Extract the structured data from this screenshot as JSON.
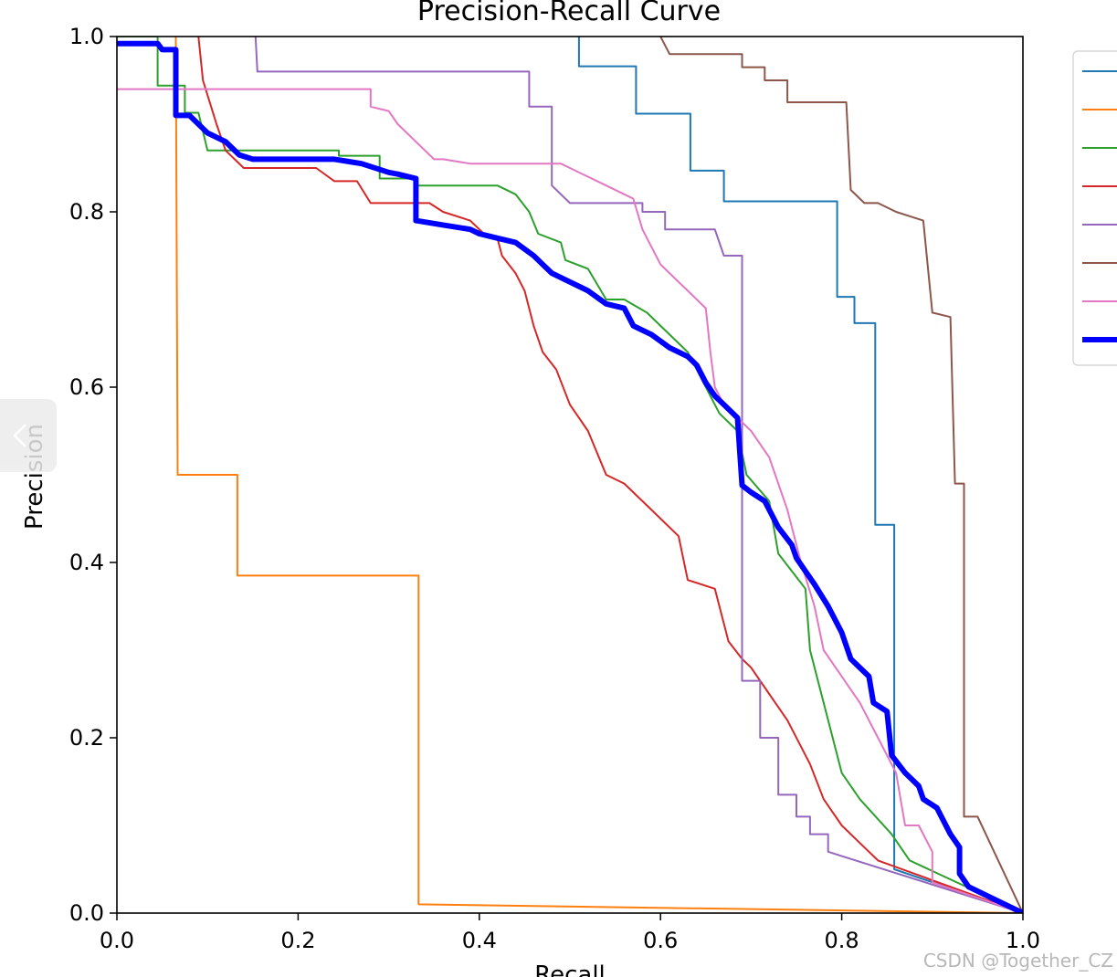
{
  "chart_data": {
    "type": "line",
    "title": "Precision-Recall Curve",
    "xlabel": "Recall",
    "ylabel": "Precision",
    "xlim": [
      0,
      1
    ],
    "ylim": [
      0,
      1
    ],
    "xticks": [
      "0.0",
      "0.2",
      "0.4",
      "0.6",
      "0.8",
      "1.0"
    ],
    "yticks": [
      "0.0",
      "0.2",
      "0.4",
      "0.6",
      "0.8",
      "1.0"
    ],
    "grid": false,
    "legend": "outside-right",
    "series": [
      {
        "color": "#1f77b4",
        "width": 2,
        "points": [
          [
            0.51,
            1.0
          ],
          [
            0.51,
            0.966
          ],
          [
            0.573,
            0.966
          ],
          [
            0.573,
            0.912
          ],
          [
            0.633,
            0.912
          ],
          [
            0.633,
            0.847
          ],
          [
            0.67,
            0.847
          ],
          [
            0.67,
            0.812
          ],
          [
            0.795,
            0.812
          ],
          [
            0.795,
            0.703
          ],
          [
            0.814,
            0.703
          ],
          [
            0.814,
            0.673
          ],
          [
            0.837,
            0.673
          ],
          [
            0.837,
            0.443
          ],
          [
            0.858,
            0.443
          ],
          [
            0.858,
            0.05
          ],
          [
            1.0,
            0.0
          ]
        ]
      },
      {
        "color": "#ff7f0e",
        "width": 2,
        "points": [
          [
            0.065,
            1.0
          ],
          [
            0.067,
            0.5
          ],
          [
            0.133,
            0.5
          ],
          [
            0.133,
            0.385
          ],
          [
            0.333,
            0.385
          ],
          [
            0.333,
            0.01
          ],
          [
            1.0,
            0.0
          ]
        ]
      },
      {
        "color": "#2ca02c",
        "width": 2,
        "points": [
          [
            0.0,
            1.0
          ],
          [
            0.045,
            1.0
          ],
          [
            0.045,
            0.944
          ],
          [
            0.075,
            0.944
          ],
          [
            0.075,
            0.913
          ],
          [
            0.09,
            0.913
          ],
          [
            0.1,
            0.87
          ],
          [
            0.14,
            0.87
          ],
          [
            0.245,
            0.87
          ],
          [
            0.245,
            0.864
          ],
          [
            0.29,
            0.864
          ],
          [
            0.29,
            0.838
          ],
          [
            0.33,
            0.838
          ],
          [
            0.33,
            0.83
          ],
          [
            0.36,
            0.83
          ],
          [
            0.42,
            0.83
          ],
          [
            0.44,
            0.82
          ],
          [
            0.455,
            0.8
          ],
          [
            0.465,
            0.775
          ],
          [
            0.49,
            0.765
          ],
          [
            0.495,
            0.745
          ],
          [
            0.52,
            0.735
          ],
          [
            0.54,
            0.7
          ],
          [
            0.56,
            0.7
          ],
          [
            0.585,
            0.685
          ],
          [
            0.61,
            0.66
          ],
          [
            0.63,
            0.64
          ],
          [
            0.65,
            0.6
          ],
          [
            0.665,
            0.57
          ],
          [
            0.685,
            0.55
          ],
          [
            0.695,
            0.5
          ],
          [
            0.72,
            0.47
          ],
          [
            0.73,
            0.41
          ],
          [
            0.76,
            0.37
          ],
          [
            0.765,
            0.3
          ],
          [
            0.79,
            0.2
          ],
          [
            0.8,
            0.16
          ],
          [
            0.82,
            0.13
          ],
          [
            0.855,
            0.09
          ],
          [
            0.875,
            0.06
          ],
          [
            1.0,
            0.0
          ]
        ]
      },
      {
        "color": "#d62728",
        "width": 2,
        "points": [
          [
            0.09,
            1.0
          ],
          [
            0.095,
            0.95
          ],
          [
            0.11,
            0.9
          ],
          [
            0.12,
            0.87
          ],
          [
            0.14,
            0.85
          ],
          [
            0.22,
            0.85
          ],
          [
            0.24,
            0.835
          ],
          [
            0.265,
            0.835
          ],
          [
            0.28,
            0.81
          ],
          [
            0.345,
            0.81
          ],
          [
            0.36,
            0.8
          ],
          [
            0.39,
            0.79
          ],
          [
            0.405,
            0.775
          ],
          [
            0.42,
            0.77
          ],
          [
            0.425,
            0.75
          ],
          [
            0.44,
            0.73
          ],
          [
            0.45,
            0.71
          ],
          [
            0.46,
            0.67
          ],
          [
            0.47,
            0.64
          ],
          [
            0.485,
            0.62
          ],
          [
            0.5,
            0.58
          ],
          [
            0.52,
            0.55
          ],
          [
            0.54,
            0.5
          ],
          [
            0.56,
            0.49
          ],
          [
            0.59,
            0.46
          ],
          [
            0.62,
            0.43
          ],
          [
            0.63,
            0.38
          ],
          [
            0.66,
            0.37
          ],
          [
            0.675,
            0.31
          ],
          [
            0.69,
            0.29
          ],
          [
            0.7,
            0.28
          ],
          [
            0.72,
            0.25
          ],
          [
            0.74,
            0.22
          ],
          [
            0.765,
            0.17
          ],
          [
            0.78,
            0.13
          ],
          [
            0.8,
            0.1
          ],
          [
            0.82,
            0.08
          ],
          [
            0.84,
            0.06
          ],
          [
            1.0,
            0.0
          ]
        ]
      },
      {
        "color": "#9467bd",
        "width": 2,
        "points": [
          [
            0.153,
            1.0
          ],
          [
            0.155,
            0.96
          ],
          [
            0.455,
            0.96
          ],
          [
            0.455,
            0.92
          ],
          [
            0.48,
            0.92
          ],
          [
            0.48,
            0.83
          ],
          [
            0.5,
            0.81
          ],
          [
            0.58,
            0.81
          ],
          [
            0.58,
            0.8
          ],
          [
            0.605,
            0.8
          ],
          [
            0.605,
            0.78
          ],
          [
            0.66,
            0.78
          ],
          [
            0.67,
            0.75
          ],
          [
            0.69,
            0.75
          ],
          [
            0.69,
            0.265
          ],
          [
            0.71,
            0.265
          ],
          [
            0.71,
            0.2
          ],
          [
            0.73,
            0.2
          ],
          [
            0.73,
            0.135
          ],
          [
            0.75,
            0.135
          ],
          [
            0.75,
            0.11
          ],
          [
            0.765,
            0.11
          ],
          [
            0.765,
            0.09
          ],
          [
            0.785,
            0.09
          ],
          [
            0.785,
            0.07
          ],
          [
            0.8,
            0.065
          ],
          [
            1.0,
            0.0
          ]
        ]
      },
      {
        "color": "#8c564b",
        "width": 2,
        "points": [
          [
            0.6,
            1.0
          ],
          [
            0.61,
            0.98
          ],
          [
            0.69,
            0.98
          ],
          [
            0.69,
            0.965
          ],
          [
            0.715,
            0.965
          ],
          [
            0.715,
            0.95
          ],
          [
            0.74,
            0.95
          ],
          [
            0.74,
            0.925
          ],
          [
            0.805,
            0.925
          ],
          [
            0.81,
            0.825
          ],
          [
            0.825,
            0.81
          ],
          [
            0.84,
            0.81
          ],
          [
            0.86,
            0.8
          ],
          [
            0.875,
            0.795
          ],
          [
            0.89,
            0.79
          ],
          [
            0.9,
            0.685
          ],
          [
            0.92,
            0.68
          ],
          [
            0.925,
            0.49
          ],
          [
            0.935,
            0.49
          ],
          [
            0.935,
            0.11
          ],
          [
            0.95,
            0.11
          ],
          [
            1.0,
            0.0
          ]
        ]
      },
      {
        "color": "#e377c2",
        "width": 2,
        "points": [
          [
            0.0,
            0.94
          ],
          [
            0.28,
            0.94
          ],
          [
            0.28,
            0.92
          ],
          [
            0.3,
            0.915
          ],
          [
            0.31,
            0.9
          ],
          [
            0.33,
            0.88
          ],
          [
            0.35,
            0.86
          ],
          [
            0.36,
            0.86
          ],
          [
            0.39,
            0.855
          ],
          [
            0.49,
            0.855
          ],
          [
            0.5,
            0.85
          ],
          [
            0.54,
            0.83
          ],
          [
            0.56,
            0.82
          ],
          [
            0.57,
            0.815
          ],
          [
            0.58,
            0.78
          ],
          [
            0.59,
            0.76
          ],
          [
            0.6,
            0.74
          ],
          [
            0.62,
            0.72
          ],
          [
            0.63,
            0.71
          ],
          [
            0.65,
            0.69
          ],
          [
            0.655,
            0.64
          ],
          [
            0.66,
            0.6
          ],
          [
            0.67,
            0.58
          ],
          [
            0.7,
            0.55
          ],
          [
            0.72,
            0.52
          ],
          [
            0.74,
            0.46
          ],
          [
            0.755,
            0.4
          ],
          [
            0.77,
            0.35
          ],
          [
            0.78,
            0.3
          ],
          [
            0.8,
            0.27
          ],
          [
            0.82,
            0.24
          ],
          [
            0.84,
            0.2
          ],
          [
            0.86,
            0.16
          ],
          [
            0.87,
            0.1
          ],
          [
            0.885,
            0.1
          ],
          [
            0.9,
            0.07
          ],
          [
            0.9,
            0.035
          ],
          [
            1.0,
            0.0
          ]
        ]
      },
      {
        "color": "#0000ff",
        "width": 6,
        "points": [
          [
            0.0,
            0.992
          ],
          [
            0.045,
            0.992
          ],
          [
            0.05,
            0.985
          ],
          [
            0.065,
            0.985
          ],
          [
            0.065,
            0.91
          ],
          [
            0.08,
            0.91
          ],
          [
            0.09,
            0.9
          ],
          [
            0.1,
            0.89
          ],
          [
            0.12,
            0.88
          ],
          [
            0.13,
            0.87
          ],
          [
            0.135,
            0.865
          ],
          [
            0.15,
            0.86
          ],
          [
            0.24,
            0.86
          ],
          [
            0.27,
            0.855
          ],
          [
            0.3,
            0.845
          ],
          [
            0.31,
            0.843
          ],
          [
            0.33,
            0.838
          ],
          [
            0.33,
            0.79
          ],
          [
            0.36,
            0.785
          ],
          [
            0.39,
            0.78
          ],
          [
            0.4,
            0.775
          ],
          [
            0.42,
            0.77
          ],
          [
            0.44,
            0.765
          ],
          [
            0.46,
            0.75
          ],
          [
            0.47,
            0.74
          ],
          [
            0.48,
            0.73
          ],
          [
            0.5,
            0.72
          ],
          [
            0.52,
            0.71
          ],
          [
            0.54,
            0.695
          ],
          [
            0.56,
            0.69
          ],
          [
            0.57,
            0.67
          ],
          [
            0.59,
            0.66
          ],
          [
            0.61,
            0.645
          ],
          [
            0.63,
            0.635
          ],
          [
            0.64,
            0.625
          ],
          [
            0.65,
            0.605
          ],
          [
            0.66,
            0.59
          ],
          [
            0.675,
            0.575
          ],
          [
            0.685,
            0.565
          ],
          [
            0.69,
            0.488
          ],
          [
            0.7,
            0.48
          ],
          [
            0.715,
            0.47
          ],
          [
            0.73,
            0.44
          ],
          [
            0.745,
            0.42
          ],
          [
            0.75,
            0.405
          ],
          [
            0.77,
            0.375
          ],
          [
            0.785,
            0.35
          ],
          [
            0.8,
            0.32
          ],
          [
            0.81,
            0.29
          ],
          [
            0.82,
            0.28
          ],
          [
            0.83,
            0.27
          ],
          [
            0.835,
            0.24
          ],
          [
            0.85,
            0.23
          ],
          [
            0.855,
            0.18
          ],
          [
            0.87,
            0.16
          ],
          [
            0.885,
            0.145
          ],
          [
            0.89,
            0.13
          ],
          [
            0.905,
            0.12
          ],
          [
            0.92,
            0.09
          ],
          [
            0.93,
            0.075
          ],
          [
            0.93,
            0.045
          ],
          [
            0.94,
            0.03
          ],
          [
            0.96,
            0.02
          ],
          [
            0.98,
            0.01
          ],
          [
            1.0,
            0.0
          ]
        ]
      }
    ]
  },
  "watermark": "CSDN @Together_CZ"
}
